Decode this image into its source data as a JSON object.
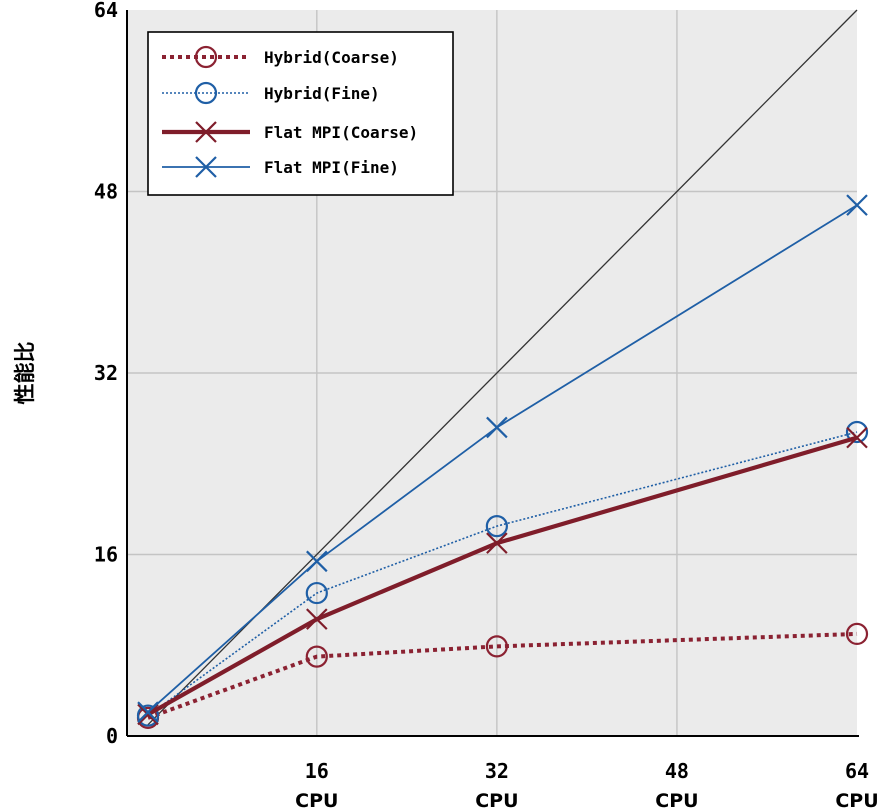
{
  "chart_data": {
    "type": "line",
    "ylabel": "性能比",
    "xlabel": "",
    "xlim": [
      0,
      64
    ],
    "ylim": [
      0,
      64
    ],
    "x_ticks": [
      {
        "value": 16,
        "label": "16",
        "unit": "CPU"
      },
      {
        "value": 32,
        "label": "32",
        "unit": "CPU"
      },
      {
        "value": 48,
        "label": "48",
        "unit": "CPU"
      },
      {
        "value": 64,
        "label": "64",
        "unit": "CPU"
      }
    ],
    "y_ticks": [
      {
        "value": 0,
        "label": "0"
      },
      {
        "value": 16,
        "label": "16"
      },
      {
        "value": 32,
        "label": "32"
      },
      {
        "value": 48,
        "label": "48"
      },
      {
        "value": 64,
        "label": "64"
      }
    ],
    "grid": true,
    "legend_position": "top-left",
    "ideal_line": {
      "x": [
        1,
        64
      ],
      "y": [
        1,
        64
      ],
      "color": "#333333"
    },
    "series": [
      {
        "name": "Hybrid(Coarse)",
        "color": "#8b2232",
        "marker": "circle",
        "line": "dotted-thick",
        "x": [
          1,
          16,
          32,
          64
        ],
        "y": [
          1.6,
          7.0,
          7.9,
          9.0
        ]
      },
      {
        "name": "Hybrid(Fine)",
        "color": "#1f5fa6",
        "marker": "circle",
        "line": "dotted-thin",
        "x": [
          1,
          16,
          32,
          64
        ],
        "y": [
          1.8,
          12.6,
          18.5,
          26.8
        ]
      },
      {
        "name": "Flat MPI(Coarse)",
        "color": "#7f1d2a",
        "marker": "x",
        "line": "solid-thick",
        "x": [
          1,
          16,
          32,
          64
        ],
        "y": [
          1.9,
          10.3,
          17.0,
          26.3
        ]
      },
      {
        "name": "Flat MPI(Fine)",
        "color": "#1f5fa6",
        "marker": "x",
        "line": "solid-thin",
        "x": [
          1,
          16,
          32,
          64
        ],
        "y": [
          2.1,
          15.4,
          27.2,
          46.8
        ]
      }
    ]
  }
}
